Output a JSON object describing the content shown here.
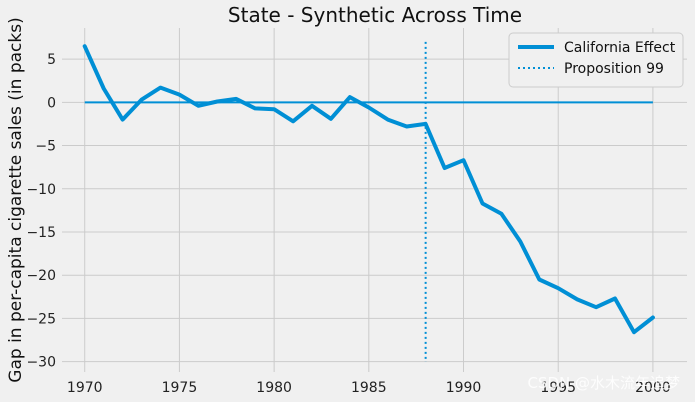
{
  "chart_data": {
    "type": "line",
    "title": "State - Synthetic Across Time",
    "xlabel": "",
    "ylabel": "Gap in per-capita cigarette sales (in packs)",
    "xlim": [
      1968.8,
      2001.8
    ],
    "ylim": [
      -31.2,
      8.6
    ],
    "xticks": [
      1970,
      1975,
      1980,
      1985,
      1990,
      1995,
      2000
    ],
    "yticks": [
      5,
      0,
      -5,
      -10,
      -15,
      -20,
      -25,
      -30
    ],
    "grid": true,
    "legend_position": "top-right",
    "series": [
      {
        "name": "California Effect",
        "color": "#008fd5",
        "x": [
          1970,
          1971,
          1972,
          1973,
          1974,
          1975,
          1976,
          1977,
          1978,
          1979,
          1980,
          1981,
          1982,
          1983,
          1984,
          1985,
          1986,
          1987,
          1988,
          1989,
          1990,
          1991,
          1992,
          1993,
          1994,
          1995,
          1996,
          1997,
          1998,
          1999,
          2000
        ],
        "values": [
          6.5,
          1.6,
          -2.0,
          0.3,
          1.7,
          0.9,
          -0.4,
          0.1,
          0.4,
          -0.7,
          -0.8,
          -2.2,
          -0.4,
          -1.9,
          0.6,
          -0.6,
          -2.0,
          -2.8,
          -2.5,
          -7.6,
          -6.7,
          -11.7,
          -12.9,
          -16.1,
          -20.5,
          -21.5,
          -22.8,
          -23.7,
          -22.7,
          -26.6,
          -24.9
        ]
      }
    ],
    "reference_lines": [
      {
        "kind": "horizontal",
        "y": 0,
        "color": "#008fd5"
      },
      {
        "kind": "vertical",
        "x": 1988,
        "name": "Proposition 99",
        "color": "#008fd5",
        "style": "dotted"
      }
    ]
  },
  "watermark": "CSDN @水木流年追梦"
}
